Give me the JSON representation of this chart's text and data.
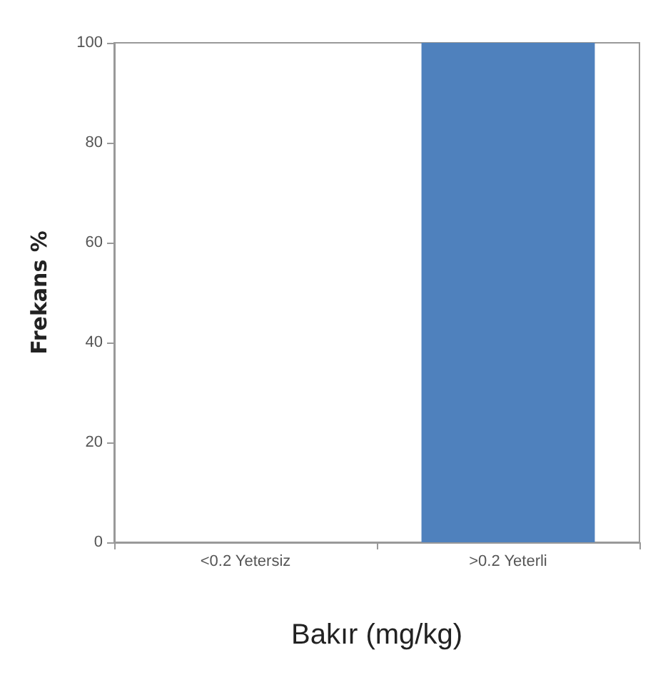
{
  "chart_data": {
    "type": "bar",
    "xlabel": "Bakır (mg/kg)",
    "ylabel": "Frekans %",
    "categories": [
      "<0.2 Yetersiz",
      ">0.2 Yeterli"
    ],
    "values": [
      0,
      100
    ],
    "color": "#4f81bd",
    "ylim": [
      0,
      100
    ],
    "yticks": [
      0,
      20,
      40,
      60,
      80,
      100
    ],
    "grid": false
  }
}
